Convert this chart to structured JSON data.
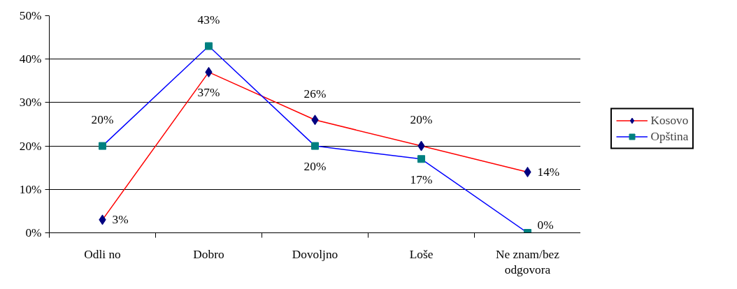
{
  "chart_data": {
    "type": "line",
    "categories": [
      "Odli no",
      "Dobro",
      "Dovoljno",
      "Loše",
      "Ne znam/bez odgovora"
    ],
    "series": [
      {
        "name": "Kosovo",
        "color": "#ff0000",
        "colors": [
          "#000080",
          "#000080",
          "#000080",
          "#000080",
          "#000080"
        ],
        "marker": "diamond",
        "values": [
          3,
          37,
          26,
          20,
          14
        ],
        "value_labels": [
          "3%",
          "37%",
          "26%",
          "20%",
          "14%"
        ]
      },
      {
        "name": "Opština",
        "color": "#0000ff",
        "colors": [
          "#008080",
          "#008080",
          "#008080",
          "#008080",
          "#008080"
        ],
        "marker": "square",
        "values": [
          20,
          43,
          20,
          17,
          0
        ],
        "value_labels": [
          "20%",
          "43%",
          "20%",
          "17%",
          "0%"
        ]
      }
    ],
    "ylim": [
      0,
      50
    ],
    "yticks": [
      {
        "value": 0,
        "label": "0%"
      },
      {
        "value": 10,
        "label": "10%"
      },
      {
        "value": 20,
        "label": "20%"
      },
      {
        "value": 30,
        "label": "30%"
      },
      {
        "value": 40,
        "label": "40%"
      },
      {
        "value": 50,
        "label": "50%"
      }
    ],
    "grid": "y",
    "legend": "right",
    "data_labels": true,
    "line_style": "solid"
  }
}
